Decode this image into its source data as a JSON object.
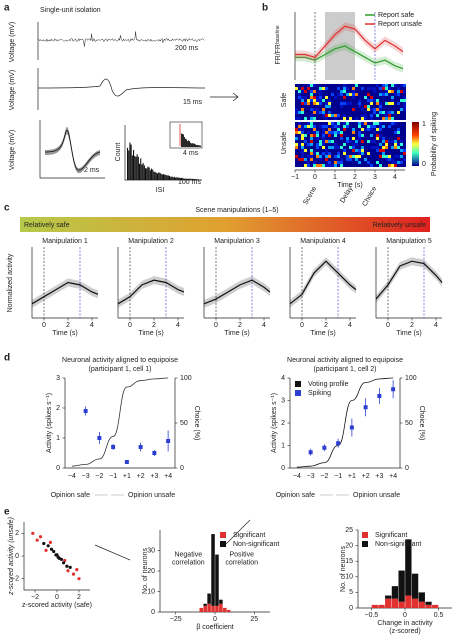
{
  "panel_a": {
    "label": "a",
    "title": "Single-unit isolation",
    "ylabel_voltage": "Voltage (mV)",
    "scale_1": "200 ms",
    "scale_2": "15 ms",
    "scale_3": "2 ms",
    "isi_ylabel": "Count",
    "isi_xlabel": "ISI",
    "isi_scale": "100 ms",
    "inset_tick": "30",
    "inset_scale": "4 ms"
  },
  "panel_b": {
    "label": "b",
    "ylabel": "FR/FR",
    "ylabel_sub": "baseline",
    "heatmap_safe": "Safe",
    "heatmap_unsafe": "Unsafe",
    "colorbar_ticks": [
      "1",
      "0"
    ],
    "colorbar_label": "Probability of spiking"
  },
  "panel_c": {
    "label": "c",
    "title": "Scene manipulations (1–5)",
    "safe": "Relatively safe",
    "unsafe": "Relatively unsafe",
    "ylabel": "Normalized activity"
  },
  "panel_d": {
    "label": "d",
    "axis_safe": "Opinion safe",
    "axis_unsafe": "Opinion unsafe"
  },
  "panel_e": {
    "label": "e"
  },
  "chart_data": [
    {
      "type": "line",
      "x": [
        -1,
        -0.5,
        0,
        0.5,
        1,
        1.5,
        2,
        2.5,
        3,
        3.5,
        4,
        4.4
      ],
      "series": [
        {
          "name": "Report safe",
          "color": "#2e9e2e",
          "values": [
            1.0,
            1.0,
            0.95,
            1.05,
            1.15,
            1.2,
            1.1,
            1.0,
            0.9,
            0.95,
            0.85,
            0.8
          ]
        },
        {
          "name": "Report unsafe",
          "color": "#e03030",
          "values": [
            1.05,
            1.05,
            1.0,
            1.2,
            1.4,
            1.55,
            1.5,
            1.3,
            1.15,
            1.3,
            1.2,
            1.1
          ]
        }
      ],
      "xlim": [
        -1,
        4.5
      ],
      "xticks": [
        {
          "value": -1,
          "label": "−1"
        },
        0,
        1,
        2,
        3,
        4
      ],
      "xlabel": "Time (s)",
      "ylim": [
        0.6,
        1.8
      ],
      "event_lines": [
        0,
        3
      ],
      "shaded_span": [
        0.5,
        2
      ],
      "events": [
        {
          "value": 0,
          "label": "Scene"
        },
        {
          "value": 1.8,
          "label": "Delay"
        },
        {
          "value": 3,
          "label": "Choice"
        }
      ],
      "legend": "top-right"
    },
    {
      "type": "line",
      "title": "Manipulation 1",
      "title_color": "#7ab53a",
      "x": [
        -1,
        0,
        1,
        2,
        3,
        4,
        4.5
      ],
      "series": [
        {
          "color": "#111",
          "values": [
            0,
            0.3,
            0.6,
            0.9,
            0.8,
            0.5,
            0.4
          ]
        }
      ],
      "xlim": [
        -1,
        4.5
      ],
      "xticks": [
        0,
        2,
        4
      ],
      "xlabel": "Time (s)",
      "ylim": [
        -0.6,
        2.4
      ],
      "event_lines": [
        0,
        3
      ]
    },
    {
      "type": "line",
      "title": "Manipulation 2",
      "title_color": "#88b03a",
      "x": [
        -1,
        0,
        1,
        2,
        3,
        4,
        4.5
      ],
      "series": [
        {
          "color": "#111",
          "values": [
            0,
            0.3,
            0.8,
            1.0,
            0.9,
            0.6,
            0.5
          ]
        }
      ],
      "xlim": [
        -1,
        4.5
      ],
      "xticks": [
        0,
        2,
        4
      ],
      "xlabel": "Time (s)",
      "ylim": [
        -0.6,
        2.4
      ],
      "event_lines": [
        0,
        3
      ]
    },
    {
      "type": "line",
      "title": "Manipulation 3",
      "title_color": "#8fa535",
      "x": [
        -1,
        0,
        1,
        2,
        3,
        4,
        4.5
      ],
      "series": [
        {
          "color": "#111",
          "values": [
            0,
            0.2,
            0.5,
            0.8,
            1.0,
            0.7,
            0.5
          ]
        }
      ],
      "xlim": [
        -1,
        4.5
      ],
      "xticks": [
        0,
        2,
        4
      ],
      "xlabel": "Time (s)",
      "ylim": [
        -0.6,
        2.4
      ],
      "event_lines": [
        0,
        3
      ]
    },
    {
      "type": "line",
      "title": "Manipulation 4",
      "title_color": "#7ab53a",
      "x": [
        -1,
        0,
        1,
        2,
        3,
        4,
        4.5
      ],
      "series": [
        {
          "color": "#111",
          "values": [
            0,
            0.4,
            1.3,
            1.8,
            1.3,
            0.8,
            0.6
          ]
        }
      ],
      "xlim": [
        -1,
        4.5
      ],
      "xticks": [
        0,
        2,
        4
      ],
      "xlabel": "Time (s)",
      "ylim": [
        -0.6,
        2.4
      ],
      "event_lines": [
        0,
        3
      ]
    },
    {
      "type": "line",
      "title": "Manipulation 5",
      "title_color": "#e02020",
      "x": [
        -1,
        0,
        1,
        2,
        3,
        4,
        4.5
      ],
      "series": [
        {
          "color": "#111",
          "values": [
            0.2,
            0.8,
            1.6,
            1.8,
            1.7,
            1.2,
            0.9
          ]
        }
      ],
      "xlim": [
        -1,
        4.5
      ],
      "xticks": [
        0,
        2,
        4
      ],
      "xlabel": "Time (s)",
      "ylim": [
        -0.6,
        2.4
      ],
      "event_lines": [
        0,
        3
      ]
    },
    {
      "type": "errorbar",
      "title": "Neuronal activity aligned to equipoise",
      "subtitle": "(participant 1, cell 1)",
      "categories": [
        "−4",
        "−3",
        "−2",
        "−1",
        "+1",
        "+2",
        "+3",
        "+4"
      ],
      "ylabel": "Activity (spikes s⁻¹)",
      "y2label": "Choice (%)",
      "ylim": [
        0,
        3
      ],
      "yticks": [
        0,
        1,
        2,
        3
      ],
      "y2lim": [
        0,
        100
      ],
      "y2ticks": [
        0,
        50,
        100
      ],
      "series": [
        {
          "name": "Voting profile",
          "color": "#333",
          "axis": "y2",
          "values": [
            2,
            4,
            10,
            35,
            90,
            97,
            99,
            100
          ]
        },
        {
          "name": "Spiking",
          "color": "#2d3fd1",
          "values": [
            null,
            1.9,
            1.0,
            0.7,
            0.2,
            0.7,
            0.5,
            0.9
          ],
          "errors": [
            null,
            0.15,
            0.2,
            0.1,
            0.05,
            0.15,
            0.1,
            0.35
          ]
        }
      ]
    },
    {
      "type": "errorbar",
      "title": "Neuronal activity aligned to equipoise",
      "subtitle": "(participant 1, cell 2)",
      "categories": [
        "−4",
        "−3",
        "−2",
        "−1",
        "+1",
        "+2",
        "+3",
        "+4"
      ],
      "ylabel": "Activity (spikes s⁻¹)",
      "y2label": "Choice (%)",
      "ylim": [
        0,
        4
      ],
      "yticks": [
        0,
        1,
        2,
        3,
        4
      ],
      "y2lim": [
        0,
        100
      ],
      "y2ticks": [
        0,
        50,
        100
      ],
      "legend": "top-left",
      "series": [
        {
          "name": "Voting profile",
          "color": "#111",
          "axis": "y2",
          "values": [
            1,
            2,
            6,
            25,
            75,
            95,
            99,
            100
          ]
        },
        {
          "name": "Spiking",
          "color": "#2d3fd1",
          "values": [
            null,
            0.7,
            0.9,
            1.1,
            1.8,
            2.7,
            3.2,
            3.5
          ],
          "errors": [
            null,
            0.15,
            0.15,
            0.2,
            0.4,
            0.4,
            0.35,
            0.4
          ]
        }
      ]
    },
    {
      "type": "scatter",
      "xlabel": "z-scored activity (safe)",
      "ylabel": "z-scored activity (unsafe)",
      "xlim": [
        -3,
        3
      ],
      "ylim": [
        -3,
        3
      ],
      "xticks": [
        {
          "value": -2,
          "label": "−2"
        },
        0,
        2
      ],
      "yticks": [
        {
          "value": -2,
          "label": "−2"
        },
        0,
        2
      ],
      "series": [
        {
          "color": "#e03030",
          "x": [
            -2.2,
            -1.8,
            -1.5,
            -1.0,
            1.0,
            1.5,
            1.8,
            2.0,
            -0.6,
            0.7
          ],
          "y": [
            2.0,
            1.4,
            1.7,
            0.5,
            -1.3,
            -1.6,
            -1.2,
            -2.0,
            1.2,
            -0.4
          ]
        },
        {
          "color": "#111",
          "x": [
            -0.8,
            -0.5,
            -0.3,
            -0.1,
            0,
            0.2,
            0.4,
            0.6,
            0.9,
            -1.2,
            1.2,
            0.1
          ],
          "y": [
            0.9,
            0.6,
            0.4,
            0.1,
            0.1,
            -0.2,
            -0.3,
            -0.6,
            -0.9,
            1.1,
            -1.0,
            -0.1
          ]
        }
      ]
    },
    {
      "type": "histogram",
      "bins": [
        -10,
        -7.5,
        -5,
        -2.5,
        0,
        2.5,
        5,
        7.5,
        10
      ],
      "xlim": [
        -35,
        35
      ],
      "xticks": [
        {
          "value": -25,
          "label": "−25"
        },
        0,
        25
      ],
      "ylim": [
        0,
        40
      ],
      "yticks": [
        0,
        10,
        20,
        30
      ],
      "xlabel": "β coefficient",
      "ylabel": "No. of neurons",
      "legend": "top-right",
      "annotations": [
        {
          "x": -17,
          "y": 28,
          "lines": [
            "Negative",
            "correlation"
          ]
        },
        {
          "x": 17,
          "y": 28,
          "lines": [
            "Positive",
            "correlation"
          ]
        }
      ],
      "series": [
        {
          "name": "Significant",
          "color": "#e03030",
          "values": [
            2,
            3,
            4,
            3,
            3,
            4,
            2,
            1
          ]
        },
        {
          "name": "Non-significant",
          "color": "#111",
          "values": [
            0,
            1,
            5,
            35,
            25,
            2,
            0,
            0
          ]
        }
      ]
    },
    {
      "type": "histogram",
      "bins": [
        -0.6,
        -0.5,
        -0.4,
        -0.3,
        -0.2,
        -0.1,
        0,
        0.1,
        0.2,
        0.3,
        0.4,
        0.5,
        0.6
      ],
      "xlim": [
        -0.7,
        0.7
      ],
      "xticks": [
        {
          "value": -0.5,
          "label": "−0.5"
        },
        0,
        0.5
      ],
      "ylim": [
        0,
        25
      ],
      "yticks": [
        0,
        5,
        10,
        15,
        20,
        25
      ],
      "xlabel": "Change in activity",
      "xlabel2": "(z-scored)",
      "ylabel": "No. of neurons",
      "legend": "top-left",
      "series": [
        {
          "name": "Significant",
          "color": "#e03030",
          "values": [
            0,
            1,
            1,
            3,
            3,
            2,
            4,
            3,
            2,
            1,
            1,
            0
          ]
        },
        {
          "name": "Non-significant",
          "color": "#111",
          "values": [
            0,
            0,
            0,
            1,
            4,
            10,
            18,
            8,
            3,
            1,
            0,
            0
          ]
        }
      ]
    }
  ]
}
